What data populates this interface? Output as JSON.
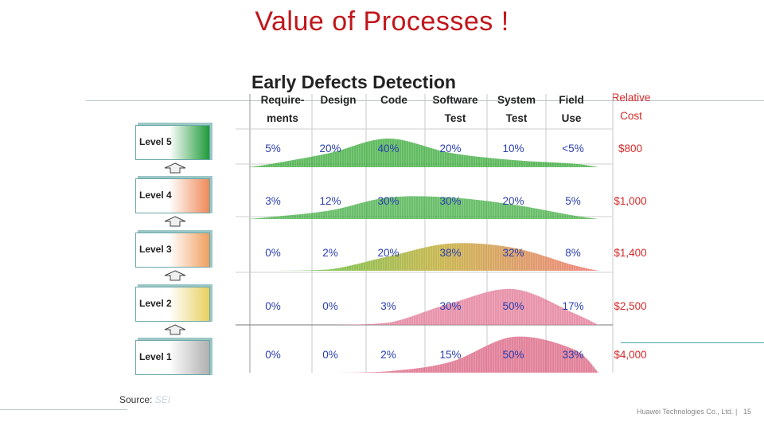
{
  "slide": {
    "title": "Value of Processes !",
    "source_label": "Source:",
    "source_value": "SEI",
    "footer_company": "Huawei Technologies Co., Ltd.",
    "footer_separator": "|",
    "page_number": "15"
  },
  "chart_data": {
    "type": "table",
    "title": "Early Defects Detection",
    "columns": [
      {
        "line1": "Require-",
        "line2": "ments"
      },
      {
        "line1": "Design",
        "line2": ""
      },
      {
        "line1": "Code",
        "line2": ""
      },
      {
        "line1": "Software",
        "line2": "Test"
      },
      {
        "line1": "System",
        "line2": "Test"
      },
      {
        "line1": "Field",
        "line2": "Use"
      }
    ],
    "cost_header": {
      "line1": "Relative",
      "line2": "Cost"
    },
    "rows": [
      {
        "level": "Level 5",
        "values": [
          "5%",
          "20%",
          "40%",
          "20%",
          "10%",
          "<5%"
        ],
        "cost": "$800",
        "color": "#2fa52f"
      },
      {
        "level": "Level 4",
        "values": [
          "3%",
          "12%",
          "30%",
          "30%",
          "20%",
          "5%"
        ],
        "cost": "$1,000",
        "color": "#3aaa3a"
      },
      {
        "level": "Level 3",
        "values": [
          "0%",
          "2%",
          "20%",
          "38%",
          "32%",
          "8%"
        ],
        "cost": "$1,400",
        "color": "#8fbf4a"
      },
      {
        "level": "Level 2",
        "values": [
          "0%",
          "0%",
          "3%",
          "30%",
          "50%",
          "17%"
        ],
        "cost": "$2,500",
        "color": "#e07090"
      },
      {
        "level": "Level 1",
        "values": [
          "0%",
          "0%",
          "2%",
          "15%",
          "50%",
          "33%"
        ],
        "cost": "$4,000",
        "color": "#d85a7a"
      }
    ],
    "level_box_colors": [
      "#1f9a3a",
      "#f08a5a",
      "#f0a060",
      "#e8d060",
      "#b0b0b0"
    ]
  }
}
